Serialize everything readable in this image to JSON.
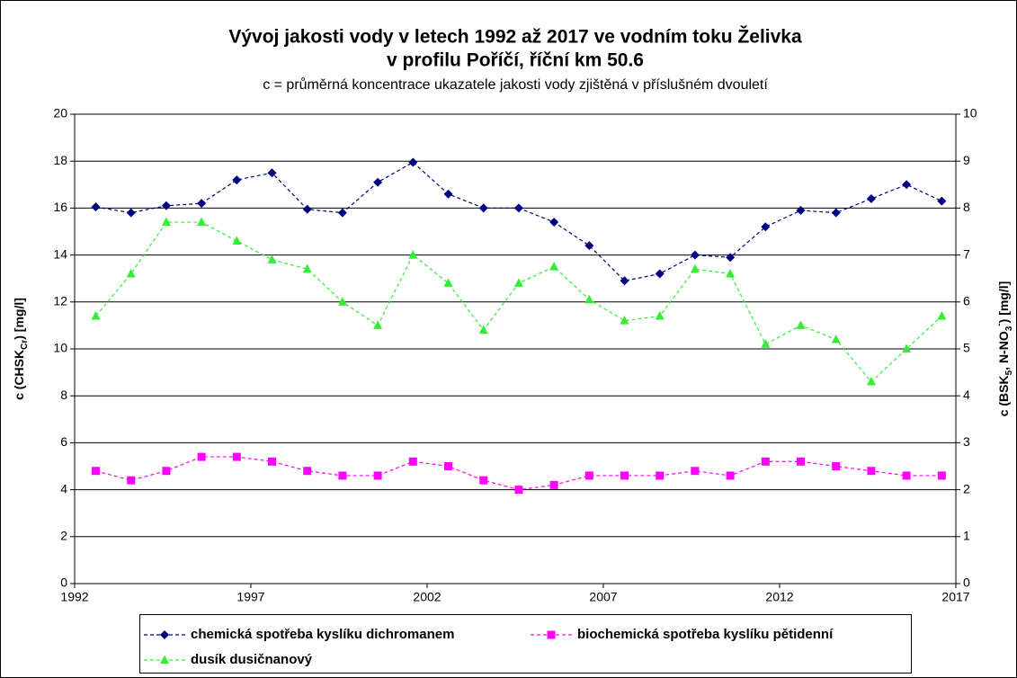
{
  "chart_data": {
    "type": "line",
    "title": [
      "Vývoj jakosti vody v letech 1992 až 2017 ve vodním toku Želivka",
      "v profilu Poříčí, říční km 50.6"
    ],
    "subtitle": "c = průměrná koncentrace ukazatele jakosti vody zjištěná v příslušném dvouletí",
    "y_label": [
      "c (CHSK",
      "Cr",
      ") [mg/l]"
    ],
    "y2_label": [
      "c (BSK",
      "5",
      ", N-NO",
      "3",
      "-",
      ") [mg/l]"
    ],
    "x": [
      1992.6,
      1993.6,
      1994.6,
      1995.6,
      1996.6,
      1997.6,
      1998.6,
      1999.6,
      2000.6,
      2001.6,
      2002.6,
      2003.6,
      2004.6,
      2005.6,
      2006.6,
      2007.6,
      2008.6,
      2009.6,
      2010.6,
      2011.6,
      2012.6,
      2013.6,
      2014.6,
      2015.6,
      2016.6
    ],
    "xlim": [
      1992,
      2017
    ],
    "xticks": [
      1992,
      1997,
      2002,
      2007,
      2012,
      2017
    ],
    "ylim": [
      0,
      20
    ],
    "yticks": [
      0,
      2,
      4,
      6,
      8,
      10,
      12,
      14,
      16,
      18,
      20
    ],
    "y2lim": [
      0,
      10
    ],
    "y2ticks": [
      0,
      1,
      2,
      3,
      4,
      5,
      6,
      7,
      8,
      9,
      10
    ],
    "grid": true,
    "series": [
      {
        "name": "chemická spotřeba kyslíku dichromanem",
        "color": "#000080",
        "marker": "diamond",
        "values": [
          16.05,
          15.8,
          16.1,
          16.2,
          17.2,
          17.5,
          15.95,
          15.8,
          17.1,
          17.95,
          16.6,
          16.0,
          16.0,
          15.4,
          14.4,
          12.9,
          13.2,
          14.0,
          13.9,
          15.2,
          15.9,
          15.8,
          16.4,
          17.0,
          16.3
        ]
      },
      {
        "name": "biochemická spotřeba kyslíku pětidenní",
        "color": "#ff00ff",
        "marker": "square",
        "axis": "y2",
        "values": [
          2.4,
          2.2,
          2.4,
          2.7,
          2.7,
          2.6,
          2.4,
          2.3,
          2.3,
          2.6,
          2.5,
          2.2,
          2.0,
          2.1,
          2.3,
          2.3,
          2.3,
          2.4,
          2.3,
          2.6,
          2.6,
          2.5,
          2.4,
          2.3,
          2.3
        ]
      },
      {
        "name": "dusík dusičnanový",
        "color": "#33ee33",
        "marker": "triangle",
        "axis": "y2",
        "values": [
          5.7,
          6.6,
          7.7,
          7.7,
          7.3,
          6.9,
          6.7,
          6.0,
          5.5,
          7.0,
          6.4,
          5.4,
          6.4,
          6.75,
          6.05,
          5.6,
          5.7,
          6.7,
          6.6,
          5.1,
          5.5,
          5.2,
          4.3,
          5.0,
          5.7
        ]
      }
    ]
  }
}
